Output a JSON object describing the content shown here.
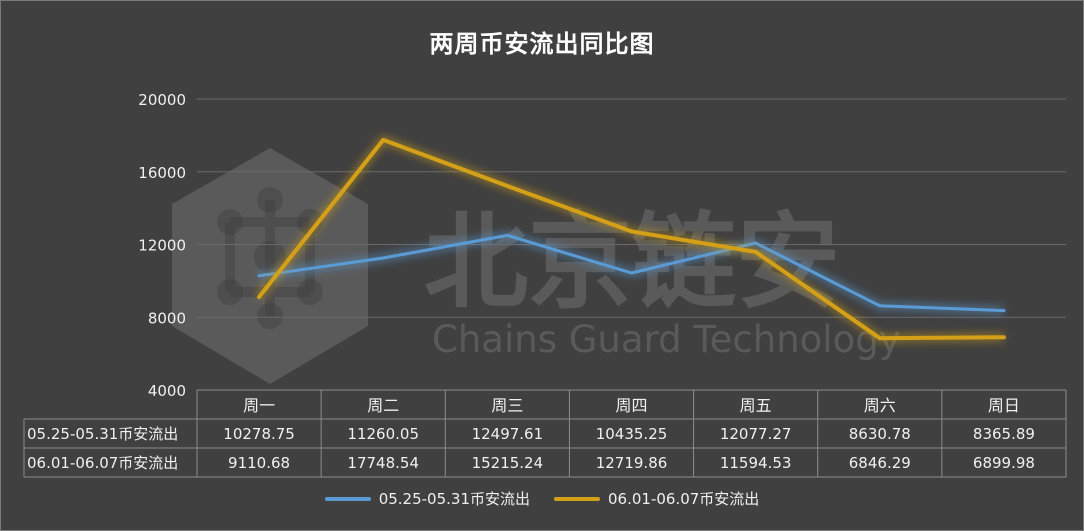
{
  "chart_data": {
    "type": "line",
    "title": "两周币安流出同比图",
    "categories": [
      "周一",
      "周二",
      "周三",
      "周四",
      "周五",
      "周六",
      "周日"
    ],
    "ylim": [
      4000,
      20000
    ],
    "yticks": [
      4000,
      8000,
      12000,
      16000,
      20000
    ],
    "yticks_text": [
      "4000",
      "8000",
      "12000",
      "16000",
      "20000"
    ],
    "grid": true,
    "legend_position": "bottom",
    "series": [
      {
        "name": "05.25-05.31币安流出",
        "color": "#5b9bd5",
        "values": [
          10278.75,
          11260.05,
          12497.61,
          10435.25,
          12077.27,
          8630.78,
          8365.89
        ],
        "values_text": [
          "10278.75",
          "11260.05",
          "12497.61",
          "10435.25",
          "12077.27",
          "8630.78",
          "8365.89"
        ]
      },
      {
        "name": "06.01-06.07币安流出",
        "color": "#d4a017",
        "values": [
          9110.68,
          17748.54,
          15215.24,
          12719.86,
          11594.53,
          6846.29,
          6899.98
        ],
        "values_text": [
          "9110.68",
          "17748.54",
          "15215.24",
          "12719.86",
          "11594.53",
          "6846.29",
          "6899.98"
        ]
      }
    ]
  },
  "watermark": {
    "cn": "北京链安",
    "en": "Chains Guard Technology"
  },
  "colors": {
    "background": "#404040",
    "grid": "#6a6a6a",
    "table_border": "#8c8c8c",
    "text": "#f0f0f0"
  }
}
